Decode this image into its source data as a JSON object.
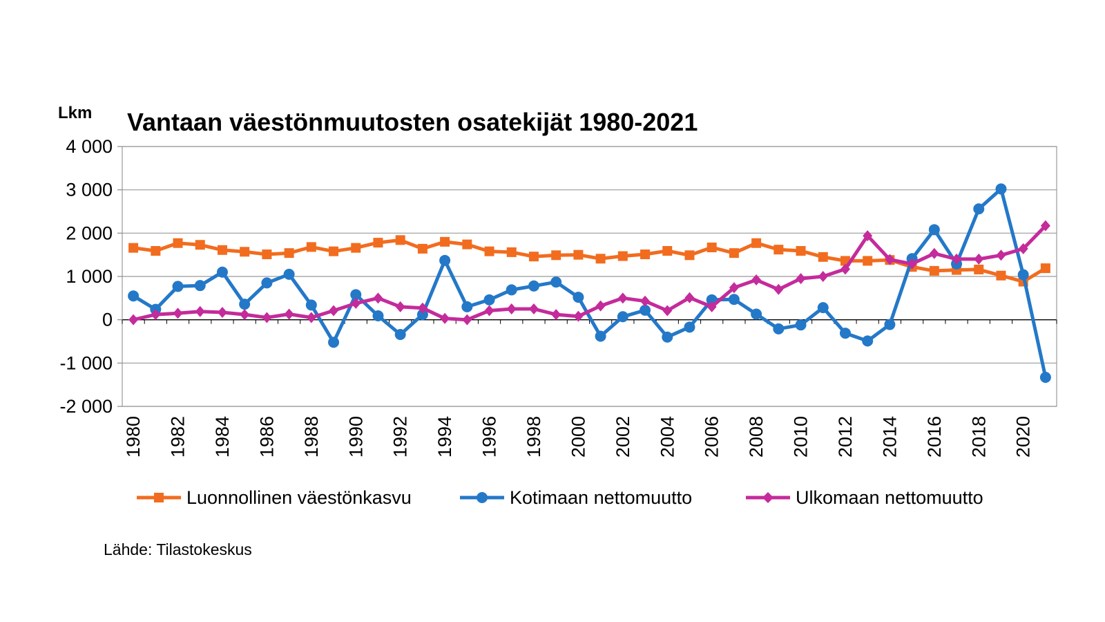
{
  "chart_data": {
    "type": "line",
    "title": "Vantaan väestönmuutosten osatekijät 1980-2021",
    "ylabel": "Lkm",
    "source": "Lähde: Tilastokeskus",
    "ylim": [
      -2000,
      4000
    ],
    "yticks": [
      -2000,
      -1000,
      0,
      1000,
      2000,
      3000,
      4000
    ],
    "ytick_labels": [
      "-2 000",
      "-1 000",
      "0",
      "1 000",
      "2 000",
      "3 000",
      "4 000"
    ],
    "x": [
      1980,
      1981,
      1982,
      1983,
      1984,
      1985,
      1986,
      1987,
      1988,
      1989,
      1990,
      1991,
      1992,
      1993,
      1994,
      1995,
      1996,
      1997,
      1998,
      1999,
      2000,
      2001,
      2002,
      2003,
      2004,
      2005,
      2006,
      2007,
      2008,
      2009,
      2010,
      2011,
      2012,
      2013,
      2014,
      2015,
      2016,
      2017,
      2018,
      2019,
      2020,
      2021
    ],
    "xtick_labels": [
      "1980",
      "1982",
      "1984",
      "1986",
      "1988",
      "1990",
      "1992",
      "1994",
      "1996",
      "1998",
      "2000",
      "2002",
      "2004",
      "2006",
      "2008",
      "2010",
      "2012",
      "2014",
      "2016",
      "2018",
      "2020"
    ],
    "grid": "horizontal",
    "legend_position": "bottom",
    "series": [
      {
        "name": "Luonnollinen väestönkasvu",
        "color": "#f26c1f",
        "marker": "square",
        "values": [
          1660,
          1590,
          1770,
          1730,
          1610,
          1570,
          1510,
          1540,
          1680,
          1580,
          1660,
          1780,
          1840,
          1640,
          1800,
          1740,
          1580,
          1560,
          1460,
          1490,
          1500,
          1410,
          1470,
          1510,
          1590,
          1490,
          1670,
          1540,
          1770,
          1620,
          1590,
          1450,
          1360,
          1360,
          1380,
          1220,
          1130,
          1150,
          1160,
          1020,
          880,
          1190
        ]
      },
      {
        "name": "Kotimaan nettomuutto",
        "color": "#2478c8",
        "marker": "circle",
        "values": [
          550,
          240,
          770,
          790,
          1100,
          360,
          850,
          1050,
          340,
          -520,
          580,
          90,
          -340,
          120,
          1370,
          300,
          460,
          690,
          780,
          870,
          520,
          -380,
          70,
          220,
          -400,
          -170,
          460,
          470,
          130,
          -210,
          -120,
          280,
          -310,
          -490,
          -110,
          1410,
          2080,
          1290,
          2560,
          3020,
          1040,
          -1330
        ]
      },
      {
        "name": "Ulkomaan nettomuutto",
        "color": "#c42b9b",
        "marker": "diamond",
        "values": [
          0,
          120,
          150,
          190,
          170,
          120,
          50,
          130,
          50,
          210,
          380,
          500,
          300,
          270,
          30,
          0,
          210,
          250,
          250,
          120,
          80,
          320,
          500,
          430,
          210,
          510,
          300,
          740,
          920,
          700,
          950,
          1000,
          1170,
          1940,
          1390,
          1290,
          1530,
          1400,
          1400,
          1490,
          1640,
          2170
        ]
      }
    ]
  }
}
